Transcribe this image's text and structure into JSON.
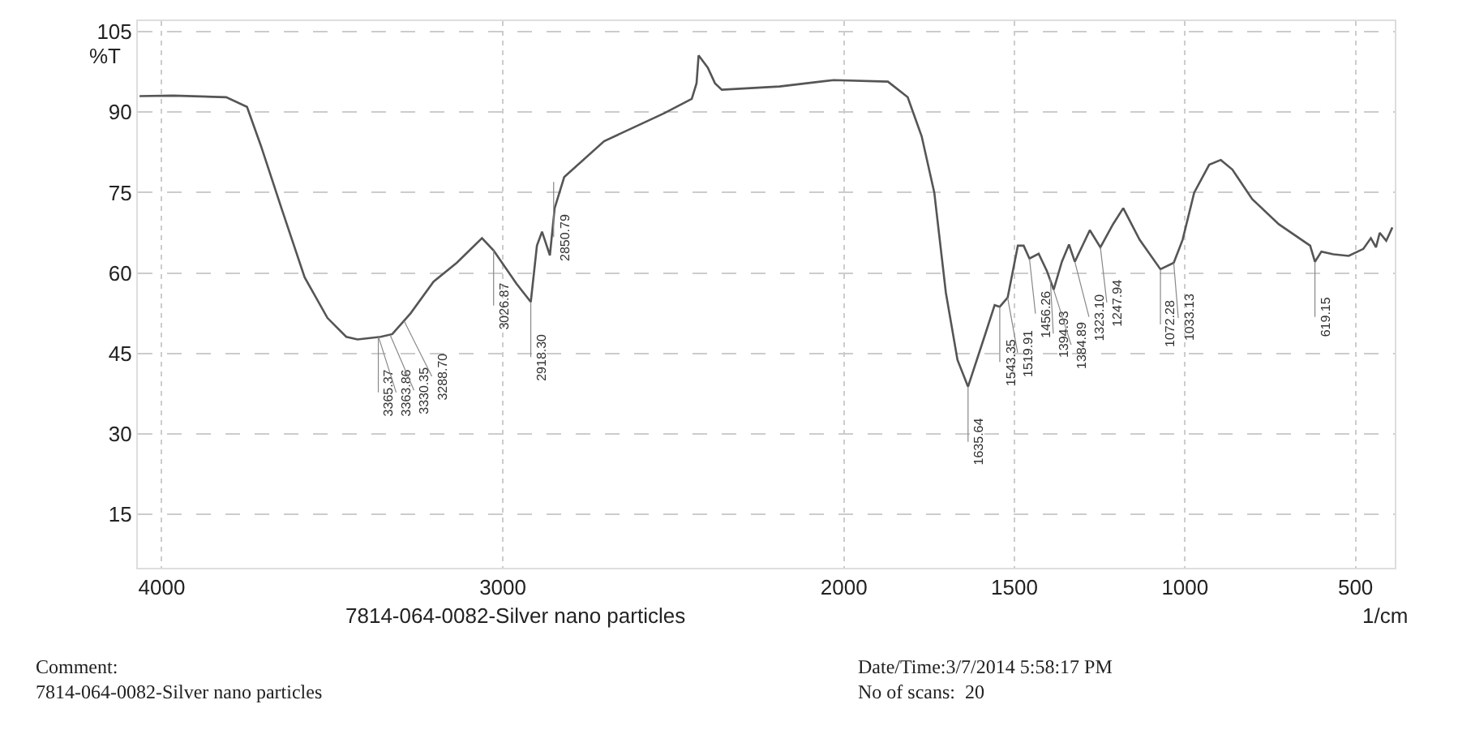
{
  "chart_data": {
    "type": "line",
    "title": "7814-064-0082-Silver nano particles",
    "xlabel": "1/cm",
    "ylabel": "%T",
    "x": [
      4065,
      3966,
      3811,
      3750,
      3709,
      3649,
      3581,
      3514,
      3459,
      3426,
      3358,
      3324,
      3270,
      3203,
      3135,
      3061,
      3027,
      2960,
      2918,
      2900,
      2885,
      2862,
      2848,
      2820,
      2703,
      2527,
      2446,
      2432,
      2426,
      2399,
      2378,
      2358,
      2189,
      2030,
      1871,
      1813,
      1772,
      1735,
      1701,
      1667,
      1636,
      1585,
      1558,
      1543,
      1520,
      1490,
      1473,
      1456,
      1429,
      1405,
      1385,
      1361,
      1340,
      1323,
      1279,
      1248,
      1211,
      1181,
      1133,
      1072,
      1033,
      1007,
      973,
      929,
      895,
      861,
      803,
      725,
      633,
      619,
      600,
      565,
      520,
      477,
      455,
      440,
      429,
      410,
      392
    ],
    "series": [
      {
        "color": "#555555",
        "values": [
          93.0,
          93.1,
          92.8,
          91.0,
          83.7,
          72.1,
          59.2,
          51.6,
          48.1,
          47.6,
          48.1,
          48.6,
          52.5,
          58.4,
          61.9,
          66.5,
          64.2,
          58.0,
          54.6,
          65.1,
          67.7,
          63.3,
          72.1,
          77.9,
          84.6,
          89.8,
          92.5,
          95.4,
          100.6,
          98.3,
          95.4,
          94.2,
          94.8,
          96.0,
          95.7,
          92.8,
          85.5,
          75.0,
          56.3,
          43.8,
          38.8,
          48.7,
          54.0,
          53.7,
          55.4,
          65.1,
          65.1,
          62.7,
          63.6,
          60.4,
          56.9,
          62.1,
          65.3,
          62.1,
          68.0,
          64.8,
          69.1,
          72.1,
          66.2,
          60.7,
          61.9,
          66.2,
          75.0,
          80.2,
          81.1,
          79.3,
          73.8,
          69.1,
          65.1,
          62.1,
          64.0,
          63.5,
          63.2,
          64.5,
          66.5,
          64.8,
          67.5,
          66.0,
          68.5
        ]
      }
    ],
    "xlim": [
      4070,
      385
    ],
    "xticks": [
      4000,
      3000,
      2000,
      1500,
      1000,
      500
    ],
    "ylim": [
      5,
      107
    ],
    "yticks": [
      15,
      30,
      45,
      60,
      75,
      90,
      105
    ],
    "grid": true,
    "line_style": "solid",
    "marker": "none",
    "annotations": [
      {
        "text": "3365.37",
        "x": 3365,
        "y": 48.0
      },
      {
        "text": "3363.86",
        "x": 3364,
        "y": 48.0
      },
      {
        "text": "3330.35",
        "x": 3330,
        "y": 48.4
      },
      {
        "text": "3288.70",
        "x": 3289,
        "y": 51.0
      },
      {
        "text": "3026.87",
        "x": 3027,
        "y": 64.2
      },
      {
        "text": "2918.30",
        "x": 2918,
        "y": 54.6
      },
      {
        "text": "2850.79",
        "x": 2851,
        "y": 77.0
      },
      {
        "text": "1635.64",
        "x": 1636,
        "y": 38.8
      },
      {
        "text": "1543.35",
        "x": 1543,
        "y": 53.7
      },
      {
        "text": "1519.91",
        "x": 1520,
        "y": 55.4
      },
      {
        "text": "1456.26",
        "x": 1456,
        "y": 62.7
      },
      {
        "text": "1394.93",
        "x": 1395,
        "y": 59.0
      },
      {
        "text": "1384.89",
        "x": 1385,
        "y": 56.9
      },
      {
        "text": "1323.10",
        "x": 1323,
        "y": 62.1
      },
      {
        "text": "1247.94",
        "x": 1248,
        "y": 64.8
      },
      {
        "text": "1072.28",
        "x": 1072,
        "y": 60.7
      },
      {
        "text": "1033.13",
        "x": 1033,
        "y": 61.9
      },
      {
        "text": "619.15",
        "x": 619,
        "y": 62.1
      },
      "Comment:\n7814-064-0082-Silver nano particles",
      "Date/Time:3/7/2014 5:58:17 PM\nNo of scans:  20"
    ]
  }
}
